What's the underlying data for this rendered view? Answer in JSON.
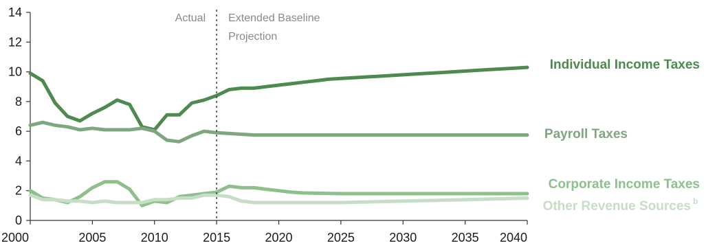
{
  "chart_data": {
    "type": "line",
    "title": "",
    "xlabel": "",
    "ylabel": "",
    "xlim": [
      2000,
      2040
    ],
    "ylim": [
      0,
      14
    ],
    "xticks": [
      "2000",
      "2005",
      "2010",
      "2015",
      "2020",
      "2025",
      "2030",
      "2035",
      "2040"
    ],
    "yticks": [
      "0",
      "2",
      "4",
      "6",
      "8",
      "10",
      "12",
      "14"
    ],
    "grid": false,
    "divider_x": 2015,
    "annotations": {
      "actual": "Actual",
      "projection_line1": "Extended Baseline",
      "projection_line2": "Projection"
    },
    "series": [
      {
        "name": "Individual Income Taxes",
        "color": "#4d8a4d",
        "x": [
          2000,
          2001,
          2002,
          2003,
          2004,
          2005,
          2006,
          2007,
          2008,
          2009,
          2010,
          2011,
          2012,
          2013,
          2014,
          2015,
          2016,
          2017,
          2018,
          2019,
          2020,
          2021,
          2022,
          2023,
          2024,
          2025,
          2026,
          2027,
          2028,
          2029,
          2030,
          2031,
          2032,
          2033,
          2034,
          2035,
          2036,
          2037,
          2038,
          2039,
          2040
        ],
        "y": [
          9.9,
          9.4,
          7.9,
          7.0,
          6.7,
          7.2,
          7.6,
          8.1,
          7.8,
          6.3,
          6.1,
          7.1,
          7.1,
          7.9,
          8.1,
          8.4,
          8.8,
          8.9,
          8.9,
          9.0,
          9.1,
          9.2,
          9.3,
          9.4,
          9.5,
          9.55,
          9.6,
          9.65,
          9.7,
          9.75,
          9.8,
          9.85,
          9.9,
          9.95,
          10.0,
          10.05,
          10.1,
          10.15,
          10.2,
          10.25,
          10.3
        ]
      },
      {
        "name": "Payroll Taxes",
        "color": "#7fa77f",
        "x": [
          2000,
          2001,
          2002,
          2003,
          2004,
          2005,
          2006,
          2007,
          2008,
          2009,
          2010,
          2011,
          2012,
          2013,
          2014,
          2015,
          2016,
          2017,
          2018,
          2019,
          2020,
          2025,
          2030,
          2035,
          2040
        ],
        "y": [
          6.4,
          6.6,
          6.4,
          6.3,
          6.1,
          6.2,
          6.1,
          6.1,
          6.1,
          6.2,
          6.0,
          5.4,
          5.3,
          5.7,
          6.0,
          5.9,
          5.85,
          5.8,
          5.75,
          5.75,
          5.75,
          5.75,
          5.75,
          5.75,
          5.75
        ]
      },
      {
        "name": "Corporate Income Taxes",
        "color": "#8dc08d",
        "x": [
          2000,
          2001,
          2002,
          2003,
          2004,
          2005,
          2006,
          2007,
          2008,
          2009,
          2010,
          2011,
          2012,
          2013,
          2014,
          2015,
          2016,
          2017,
          2018,
          2019,
          2020,
          2021,
          2022,
          2025,
          2030,
          2035,
          2040
        ],
        "y": [
          2.0,
          1.5,
          1.4,
          1.2,
          1.6,
          2.2,
          2.6,
          2.6,
          2.1,
          1.0,
          1.3,
          1.2,
          1.6,
          1.7,
          1.8,
          1.9,
          2.3,
          2.2,
          2.2,
          2.1,
          2.0,
          1.9,
          1.85,
          1.8,
          1.8,
          1.8,
          1.8
        ]
      },
      {
        "name": "Other Revenue Sources",
        "sup": "b",
        "color": "#c6dec6",
        "x": [
          2000,
          2001,
          2002,
          2003,
          2004,
          2005,
          2006,
          2007,
          2008,
          2009,
          2010,
          2011,
          2012,
          2013,
          2014,
          2015,
          2016,
          2017,
          2018,
          2020,
          2025,
          2030,
          2035,
          2040
        ],
        "y": [
          1.7,
          1.4,
          1.4,
          1.3,
          1.3,
          1.2,
          1.3,
          1.2,
          1.2,
          1.2,
          1.4,
          1.4,
          1.5,
          1.5,
          1.7,
          1.7,
          1.6,
          1.3,
          1.2,
          1.2,
          1.2,
          1.3,
          1.4,
          1.5
        ]
      }
    ]
  }
}
